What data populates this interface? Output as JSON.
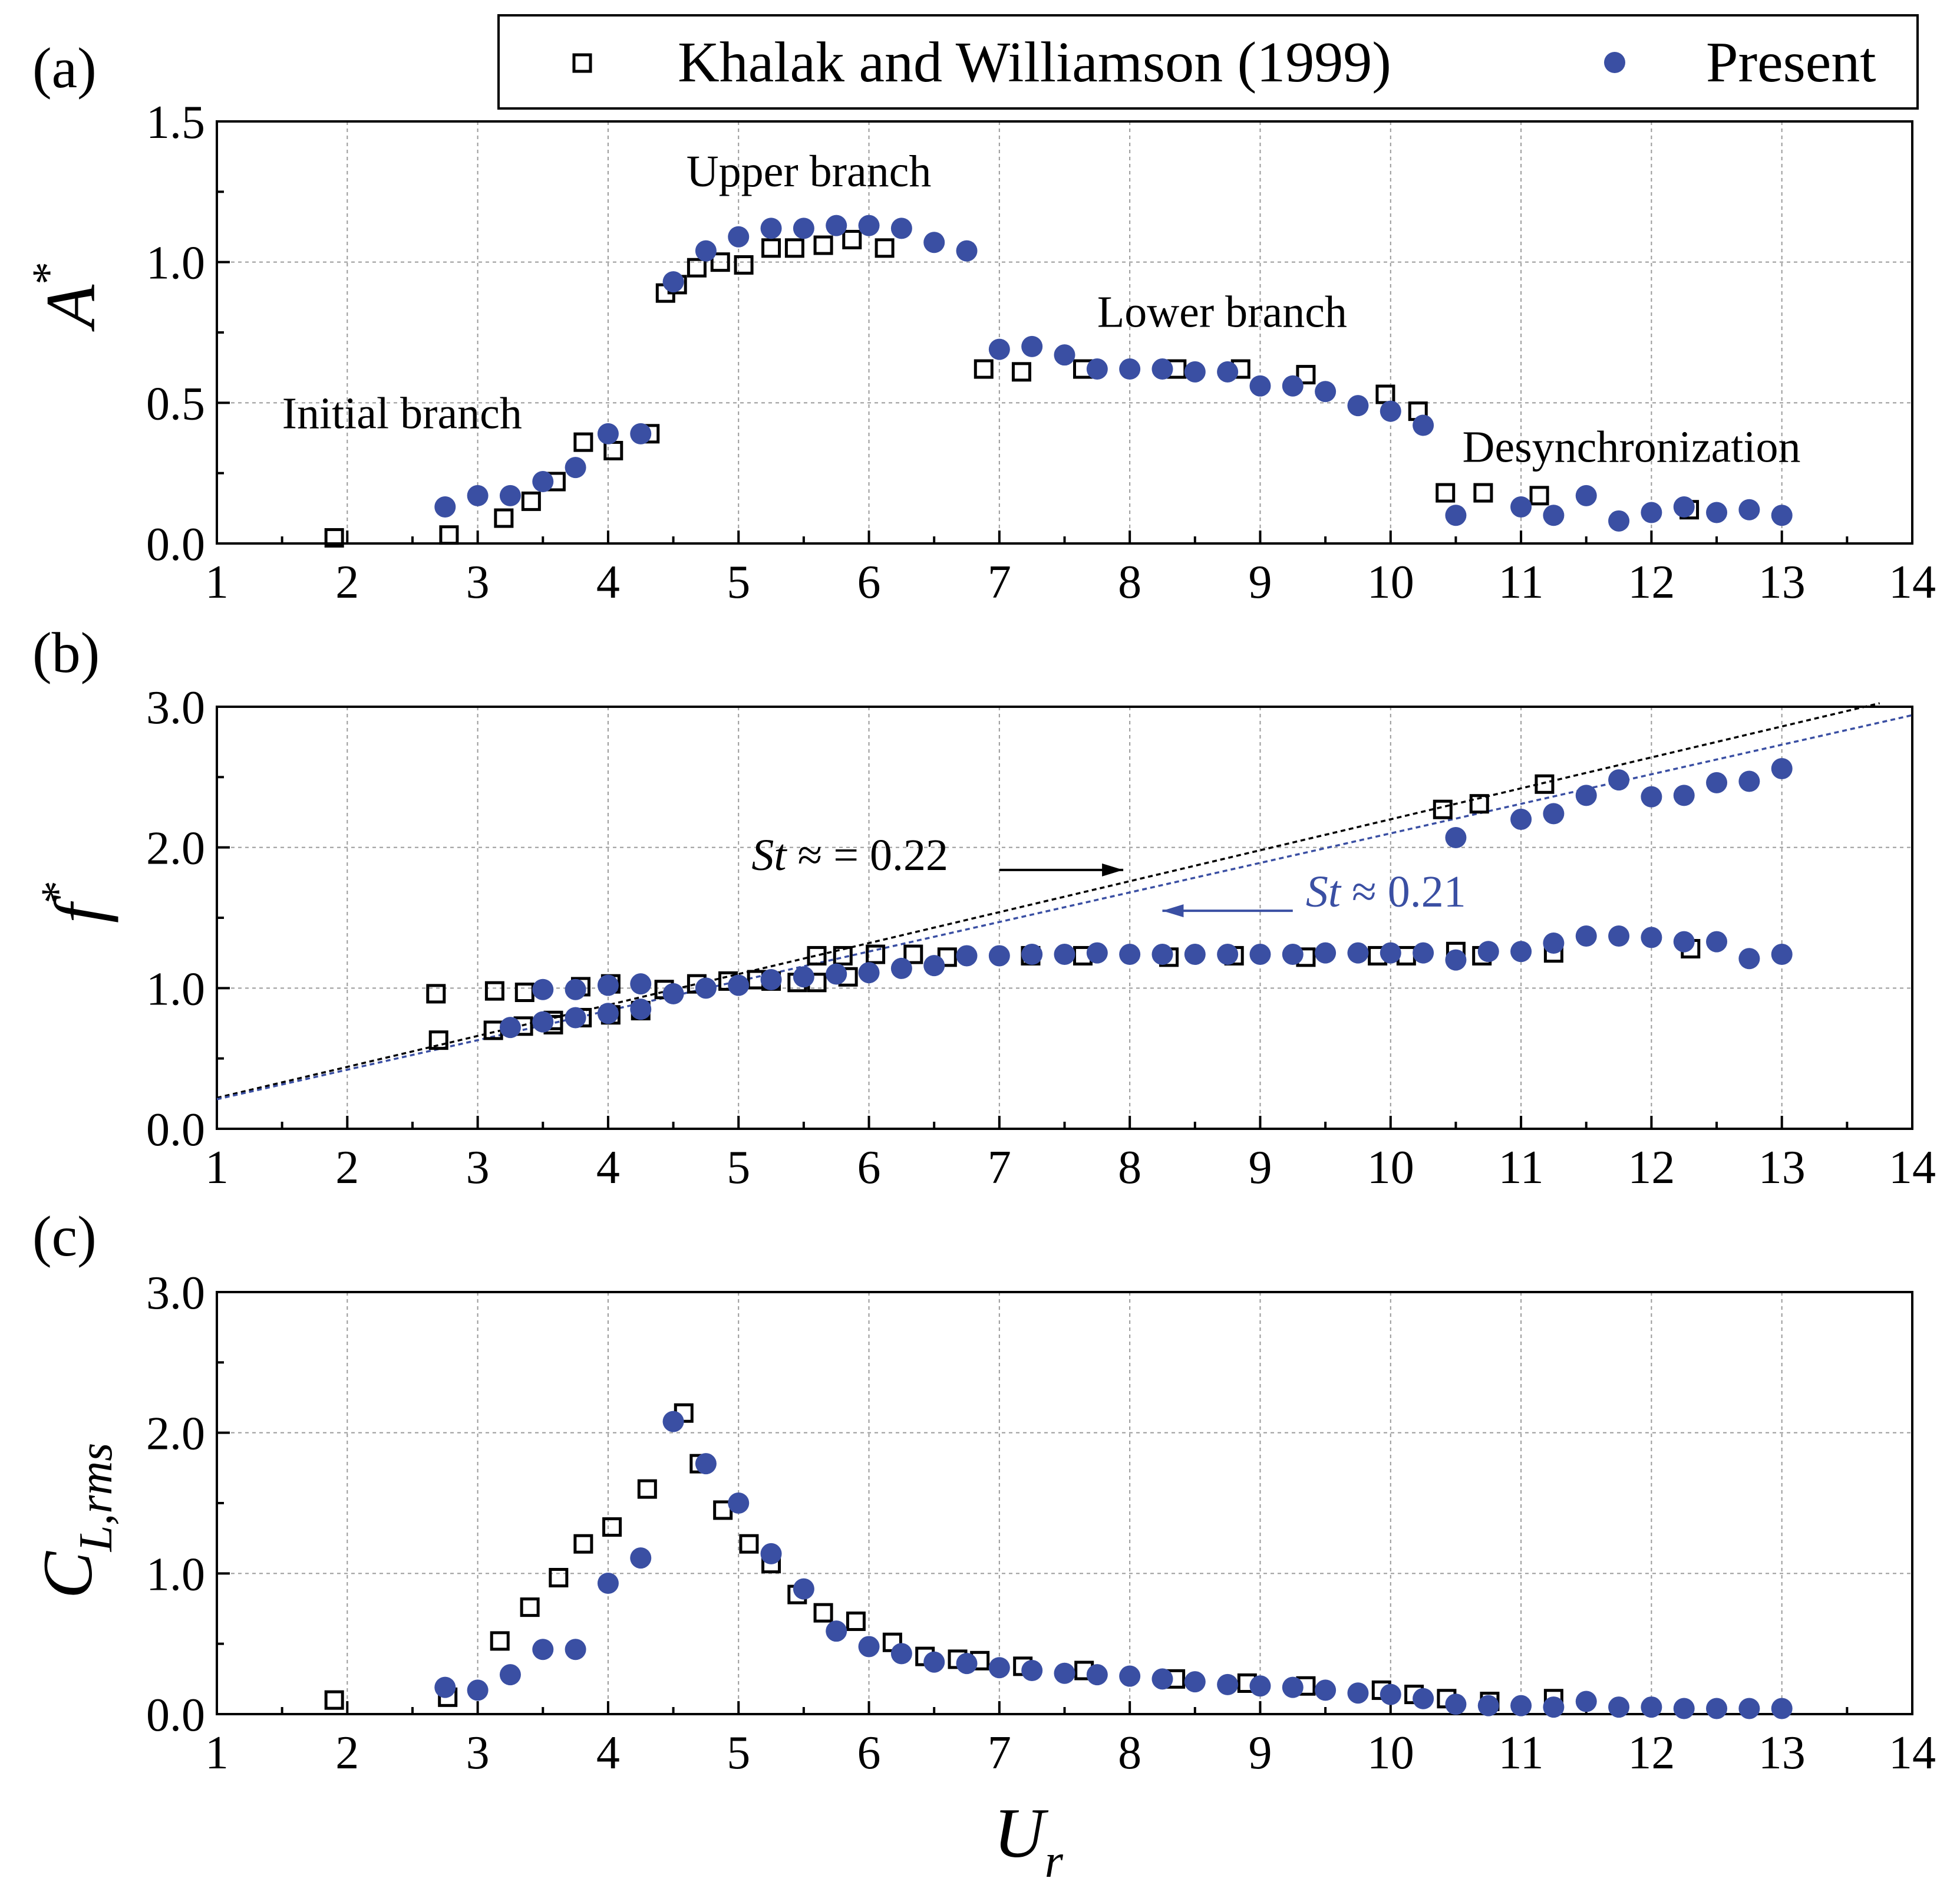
{
  "figure": {
    "xlabel_main": "U",
    "xlabel_sub": "r",
    "legend": [
      {
        "label": "Khalak and Williamson (1999)",
        "marker": "open-square",
        "color": "#000000"
      },
      {
        "label": "Present",
        "marker": "filled-circle",
        "color": "#3a4fa3"
      }
    ]
  },
  "chart_data": [
    {
      "type": "scatter",
      "panel_label": "(a)",
      "ylabel_main": "A",
      "ylabel_sup": "*",
      "xlim": [
        1,
        14
      ],
      "ylim": [
        0,
        1.5
      ],
      "xticks": [
        1,
        2,
        3,
        4,
        5,
        6,
        7,
        8,
        9,
        10,
        11,
        12,
        13,
        14
      ],
      "yticks": [
        0.0,
        0.5,
        1.0,
        1.5
      ],
      "ytick_labels": [
        "0.0",
        "0.5",
        "1.0",
        "1.5"
      ],
      "annotations": [
        {
          "text": "Initial branch",
          "x": 1.5,
          "y": 0.41
        },
        {
          "text": "Upper branch",
          "x": 4.6,
          "y": 1.27
        },
        {
          "text": "Lower branch",
          "x": 7.75,
          "y": 0.77
        },
        {
          "text": "Desynchronization",
          "x": 10.55,
          "y": 0.29
        }
      ],
      "series": [
        {
          "name": "Khalak and Williamson (1999)",
          "x": [
            1.9,
            2.78,
            3.2,
            3.41,
            3.6,
            3.81,
            4.04,
            4.32,
            4.44,
            4.53,
            4.68,
            4.86,
            5.04,
            5.25,
            5.43,
            5.65,
            5.87,
            6.12,
            6.88,
            7.17,
            7.64,
            8.36,
            8.85,
            9.35,
            9.96,
            10.21,
            10.42,
            10.71,
            11.14,
            12.29
          ],
          "y": [
            0.02,
            0.03,
            0.09,
            0.15,
            0.22,
            0.36,
            0.33,
            0.39,
            0.89,
            0.92,
            0.98,
            1.0,
            0.99,
            1.05,
            1.05,
            1.06,
            1.08,
            1.05,
            0.62,
            0.61,
            0.62,
            0.62,
            0.62,
            0.6,
            0.53,
            0.47,
            0.18,
            0.18,
            0.17,
            0.12
          ]
        },
        {
          "name": "Present",
          "x": [
            2.75,
            3.0,
            3.25,
            3.5,
            3.75,
            4.0,
            4.25,
            4.5,
            4.75,
            5.0,
            5.25,
            5.5,
            5.75,
            6.0,
            6.25,
            6.5,
            6.75,
            7.0,
            7.25,
            7.5,
            7.75,
            8.0,
            8.25,
            8.5,
            8.75,
            9.0,
            9.25,
            9.5,
            9.75,
            10.0,
            10.25,
            10.5,
            11.0,
            11.25,
            11.5,
            11.75,
            12.0,
            12.25,
            12.5,
            12.75,
            13.0
          ],
          "y": [
            0.13,
            0.17,
            0.17,
            0.22,
            0.27,
            0.39,
            0.39,
            0.93,
            1.04,
            1.09,
            1.12,
            1.12,
            1.13,
            1.13,
            1.12,
            1.07,
            1.04,
            0.69,
            0.7,
            0.67,
            0.62,
            0.62,
            0.62,
            0.61,
            0.61,
            0.56,
            0.56,
            0.54,
            0.49,
            0.47,
            0.42,
            0.1,
            0.13,
            0.1,
            0.17,
            0.08,
            0.11,
            0.13,
            0.11,
            0.12,
            0.1
          ]
        }
      ]
    },
    {
      "type": "scatter",
      "panel_label": "(b)",
      "ylabel_main": "f",
      "ylabel_sup": "*",
      "xlim": [
        1,
        14
      ],
      "ylim": [
        0,
        3
      ],
      "xticks": [
        1,
        2,
        3,
        4,
        5,
        6,
        7,
        8,
        9,
        10,
        11,
        12,
        13,
        14
      ],
      "yticks": [
        0.0,
        1.0,
        2.0,
        3.0
      ],
      "ytick_labels": [
        "0.0",
        "1.0",
        "2.0",
        "3.0"
      ],
      "lines": [
        {
          "name": "St_black",
          "slope": 0.22,
          "color": "#000000",
          "x_range": [
            1,
            13.75
          ]
        },
        {
          "name": "St_blue",
          "slope": 0.21,
          "color": "#3a4fa3",
          "x_range": [
            1,
            14
          ]
        }
      ],
      "annotations": [
        {
          "prefix": "St",
          "text": " ≈ = 0.22",
          "color": "#000000",
          "x": 5.1,
          "y": 1.84,
          "arrow": {
            "x1": 7.0,
            "y1": 1.84,
            "x2": 7.95,
            "y2": 1.84
          }
        },
        {
          "prefix": "St",
          "text": " ≈ 0.21",
          "color": "#3a4fa3",
          "x": 9.35,
          "y": 1.58,
          "arrow": {
            "x1": 9.25,
            "y1": 1.55,
            "x2": 8.25,
            "y2": 1.55
          }
        }
      ],
      "series": [
        {
          "name": "Khalak and Williamson (1999)",
          "x": [
            2.68,
            3.13,
            3.36,
            3.58,
            3.79,
            4.02,
            4.43,
            4.68,
            4.92,
            5.14,
            5.25,
            5.45,
            5.6,
            5.6,
            5.8,
            5.84,
            6.05,
            6.34,
            6.6,
            7.24,
            7.64,
            8.3,
            8.8,
            9.35,
            9.9,
            10.12,
            10.4,
            10.5,
            10.68,
            10.7,
            11.18,
            11.25,
            12.3
          ],
          "y": [
            0.96,
            0.98,
            0.97,
            0.74,
            1.01,
            1.03,
            0.99,
            1.03,
            1.05,
            1.06,
            1.05,
            1.04,
            1.04,
            1.23,
            1.23,
            1.08,
            1.24,
            1.24,
            1.22,
            1.23,
            1.23,
            1.22,
            1.23,
            1.22,
            1.23,
            1.23,
            2.27,
            1.26,
            2.31,
            1.23,
            2.45,
            1.25,
            1.28
          ]
        },
        {
          "name": "Khalak and Williamson (1999) lower",
          "x": [
            2.7,
            3.12,
            3.35,
            3.58,
            3.8,
            4.02,
            4.25
          ],
          "y": [
            0.63,
            0.7,
            0.73,
            0.77,
            0.79,
            0.81,
            0.84
          ]
        },
        {
          "name": "Present",
          "x": [
            3.25,
            3.5,
            3.75,
            4.0,
            4.25,
            4.5,
            4.75,
            5.0,
            5.25,
            5.5,
            5.75,
            6.0,
            6.25,
            6.5,
            6.75,
            7.0,
            7.25,
            7.5,
            7.75,
            8.0,
            8.25,
            8.5,
            8.75,
            9.0,
            9.25,
            9.5,
            9.75,
            10.0,
            10.25,
            10.5,
            10.75,
            11.0,
            11.25,
            11.5,
            11.75,
            12.0,
            12.25,
            12.5,
            12.75,
            13.0
          ],
          "y": [
            0.72,
            0.76,
            0.79,
            0.82,
            0.85,
            0.96,
            1.0,
            1.02,
            1.06,
            1.08,
            1.1,
            1.11,
            1.14,
            1.16,
            1.23,
            1.23,
            1.24,
            1.24,
            1.25,
            1.24,
            1.24,
            1.24,
            1.24,
            1.24,
            1.24,
            1.25,
            1.25,
            1.25,
            1.25,
            1.2,
            1.26,
            1.26,
            1.32,
            1.37,
            1.37,
            1.36,
            1.33,
            1.33,
            1.21,
            1.24
          ]
        },
        {
          "name": "Present upper",
          "x": [
            3.5,
            3.75,
            4.0,
            4.25,
            10.5,
            11.0,
            11.25,
            11.5,
            11.75,
            12.0,
            12.25,
            12.5,
            12.75,
            13.0
          ],
          "y": [
            0.99,
            0.99,
            1.02,
            1.03,
            2.07,
            2.2,
            2.24,
            2.37,
            2.48,
            2.36,
            2.37,
            2.46,
            2.47,
            2.56
          ]
        }
      ]
    },
    {
      "type": "scatter",
      "panel_label": "(c)",
      "ylabel_main": "C",
      "ylabel_sub": "L,rms",
      "xlim": [
        1,
        14
      ],
      "ylim": [
        0,
        3
      ],
      "xticks": [
        1,
        2,
        3,
        4,
        5,
        6,
        7,
        8,
        9,
        10,
        11,
        12,
        13,
        14
      ],
      "yticks": [
        0.0,
        1.0,
        2.0,
        3.0
      ],
      "ytick_labels": [
        "0.0",
        "1.0",
        "2.0",
        "3.0"
      ],
      "series": [
        {
          "name": "Khalak and Williamson (1999)",
          "x": [
            1.9,
            2.77,
            3.17,
            3.4,
            3.62,
            3.81,
            4.03,
            4.3,
            4.58,
            4.7,
            4.88,
            5.08,
            5.25,
            5.45,
            5.65,
            5.9,
            6.18,
            6.43,
            6.68,
            6.85,
            7.18,
            7.65,
            8.35,
            8.9,
            9.35,
            9.93,
            10.18,
            10.43,
            10.76,
            11.25
          ],
          "y": [
            0.1,
            0.12,
            0.52,
            0.76,
            0.97,
            1.21,
            1.33,
            1.6,
            2.14,
            1.78,
            1.45,
            1.21,
            1.07,
            0.85,
            0.72,
            0.66,
            0.51,
            0.41,
            0.39,
            0.38,
            0.34,
            0.31,
            0.25,
            0.22,
            0.2,
            0.17,
            0.14,
            0.11,
            0.09,
            0.11
          ]
        },
        {
          "name": "Present",
          "x": [
            2.75,
            3.0,
            3.25,
            3.5,
            3.75,
            4.0,
            4.25,
            4.5,
            4.75,
            5.0,
            5.25,
            5.5,
            5.75,
            6.0,
            6.25,
            6.5,
            6.75,
            7.0,
            7.25,
            7.5,
            7.75,
            8.0,
            8.25,
            8.5,
            8.75,
            9.0,
            9.25,
            9.5,
            9.75,
            10.0,
            10.25,
            10.5,
            10.75,
            11.0,
            11.25,
            11.5,
            11.75,
            12.0,
            12.25,
            12.5,
            12.75,
            13.0
          ],
          "y": [
            0.19,
            0.17,
            0.28,
            0.46,
            0.46,
            0.93,
            1.11,
            2.08,
            1.78,
            1.5,
            1.14,
            0.89,
            0.59,
            0.48,
            0.43,
            0.37,
            0.36,
            0.33,
            0.31,
            0.29,
            0.28,
            0.27,
            0.25,
            0.23,
            0.21,
            0.2,
            0.19,
            0.17,
            0.15,
            0.14,
            0.11,
            0.07,
            0.06,
            0.06,
            0.05,
            0.09,
            0.05,
            0.05,
            0.04,
            0.04,
            0.04,
            0.04
          ]
        }
      ]
    }
  ]
}
